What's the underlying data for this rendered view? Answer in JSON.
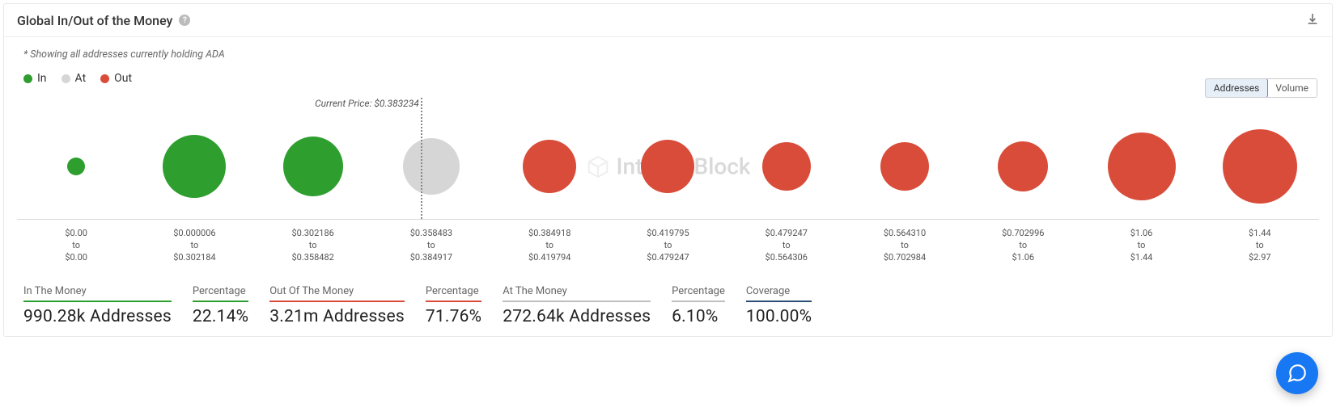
{
  "header": {
    "title": "Global In/Out of the Money",
    "download_title": "Download"
  },
  "subnote": "* Showing all addresses currently holding ADA",
  "legend": [
    {
      "label": "In",
      "color": "#2e9e2e"
    },
    {
      "label": "At",
      "color": "#d6d6d6"
    },
    {
      "label": "Out",
      "color": "#d94c3a"
    }
  ],
  "toggle": {
    "addresses": "Addresses",
    "volume": "Volume",
    "active": "addresses"
  },
  "current_price_label": "Current Price: $0.383234",
  "price_line_pct": 31.0,
  "watermark": "IntoTheBlock",
  "colors": {
    "in": "#2e9e2e",
    "at": "#d6d6d6",
    "out": "#d94c3a",
    "coverage": "#2a4d7a",
    "axis_line": "#d9d9d9",
    "background": "#ffffff"
  },
  "bubbles": [
    {
      "range_from": "$0.00",
      "range_to": "$0.00",
      "size": 22,
      "group": "in"
    },
    {
      "range_from": "$0.000006",
      "range_to": "$0.302184",
      "size": 78,
      "group": "in"
    },
    {
      "range_from": "$0.302186",
      "range_to": "$0.358482",
      "size": 74,
      "group": "in"
    },
    {
      "range_from": "$0.358483",
      "range_to": "$0.384917",
      "size": 70,
      "group": "at"
    },
    {
      "range_from": "$0.384918",
      "range_to": "$0.419794",
      "size": 66,
      "group": "out"
    },
    {
      "range_from": "$0.419795",
      "range_to": "$0.479247",
      "size": 66,
      "group": "out"
    },
    {
      "range_from": "$0.479247",
      "range_to": "$0.564306",
      "size": 60,
      "group": "out"
    },
    {
      "range_from": "$0.564310",
      "range_to": "$0.702984",
      "size": 60,
      "group": "out"
    },
    {
      "range_from": "$0.702996",
      "range_to": "$1.06",
      "size": 62,
      "group": "out"
    },
    {
      "range_from": "$1.06",
      "range_to": "$1.44",
      "size": 84,
      "group": "out"
    },
    {
      "range_from": "$1.44",
      "range_to": "$2.97",
      "size": 92,
      "group": "out"
    }
  ],
  "summary": [
    {
      "label": "In The Money",
      "value": "990.28k Addresses",
      "underline": "#2e9e2e"
    },
    {
      "label": "Percentage",
      "value": "22.14%",
      "underline": "#2e9e2e"
    },
    {
      "label": "Out Of The Money",
      "value": "3.21m Addresses",
      "underline": "#d94c3a"
    },
    {
      "label": "Percentage",
      "value": "71.76%",
      "underline": "#d94c3a"
    },
    {
      "label": "At The Money",
      "value": "272.64k Addresses",
      "underline": "#bfbfbf"
    },
    {
      "label": "Percentage",
      "value": "6.10%",
      "underline": "#bfbfbf"
    },
    {
      "label": "Coverage",
      "value": "100.00%",
      "underline": "#2a4d7a"
    }
  ],
  "range_word": "to"
}
